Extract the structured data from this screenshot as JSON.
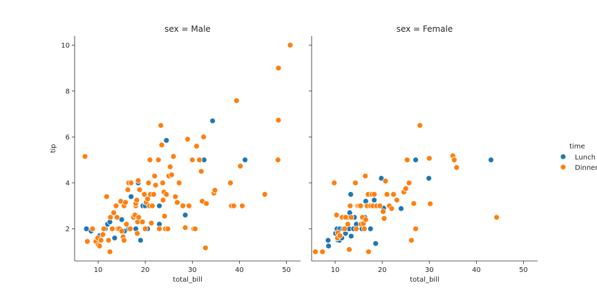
{
  "chart_data": {
    "type": "scatter",
    "panels": [
      {
        "title": "sex = Male",
        "xlabel": "total_bill",
        "ylabel": "tip",
        "xlim": [
          5,
          53
        ],
        "ylim": [
          0.6,
          10.4
        ],
        "xticks": [
          10,
          20,
          30,
          40,
          50
        ],
        "yticks": [
          2,
          4,
          6,
          8,
          10
        ],
        "series": [
          {
            "name": "Lunch",
            "points": [
              [
                7.5,
                2.0
              ],
              [
                8.5,
                1.9
              ],
              [
                9.6,
                1.5
              ],
              [
                10.1,
                1.3
              ],
              [
                10.3,
                1.7
              ],
              [
                11.5,
                2.0
              ],
              [
                12.0,
                2.2
              ],
              [
                12.5,
                2.3
              ],
              [
                13.1,
                2.0
              ],
              [
                13.5,
                1.6
              ],
              [
                14.5,
                2.0
              ],
              [
                15.0,
                2.4
              ],
              [
                15.6,
                1.9
              ],
              [
                16.5,
                2.0
              ],
              [
                17.0,
                3.4
              ],
              [
                18.0,
                2.0
              ],
              [
                18.5,
                4.0
              ],
              [
                19.0,
                1.5
              ],
              [
                19.5,
                3.0
              ],
              [
                20.0,
                3.0
              ],
              [
                20.5,
                2.0
              ],
              [
                23.0,
                3.0
              ],
              [
                23.0,
                2.2
              ],
              [
                24.5,
                5.85
              ],
              [
                28.5,
                2.6
              ],
              [
                32.5,
                5.0
              ],
              [
                34.3,
                6.7
              ],
              [
                41.2,
                5.0
              ]
            ]
          },
          {
            "name": "Dinner",
            "points": [
              [
                7.2,
                5.15
              ],
              [
                7.7,
                1.45
              ],
              [
                8.8,
                2.0
              ],
              [
                9.5,
                1.45
              ],
              [
                9.9,
                1.6
              ],
              [
                10.0,
                1.3
              ],
              [
                10.3,
                1.25
              ],
              [
                10.6,
                1.5
              ],
              [
                11.0,
                1.75
              ],
              [
                11.2,
                2.0
              ],
              [
                11.8,
                3.4
              ],
              [
                12.2,
                1.5
              ],
              [
                12.5,
                1.0
              ],
              [
                12.6,
                2.5
              ],
              [
                13.0,
                2.0
              ],
              [
                13.3,
                2.7
              ],
              [
                13.8,
                3.0
              ],
              [
                14.0,
                2.5
              ],
              [
                14.2,
                2.0
              ],
              [
                14.5,
                2.0
              ],
              [
                14.8,
                3.2
              ],
              [
                15.0,
                1.9
              ],
              [
                15.3,
                1.65
              ],
              [
                15.5,
                1.5
              ],
              [
                15.5,
                3.0
              ],
              [
                15.8,
                3.15
              ],
              [
                16.0,
                2.2
              ],
              [
                16.3,
                3.7
              ],
              [
                16.5,
                4.0
              ],
              [
                16.8,
                2.0
              ],
              [
                17.0,
                4.0
              ],
              [
                17.5,
                2.5
              ],
              [
                17.8,
                2.6
              ],
              [
                18.0,
                3.0
              ],
              [
                18.0,
                3.1
              ],
              [
                18.2,
                3.25
              ],
              [
                18.3,
                1.8
              ],
              [
                18.4,
                2.3
              ],
              [
                18.5,
                4.1
              ],
              [
                18.6,
                2.5
              ],
              [
                18.8,
                3.7
              ],
              [
                19.4,
                2.3
              ],
              [
                19.8,
                3.5
              ],
              [
                20.0,
                2.0
              ],
              [
                20.2,
                3.15
              ],
              [
                20.5,
                3.3
              ],
              [
                20.7,
                4.0
              ],
              [
                20.9,
                3.0
              ],
              [
                21.0,
                5.0
              ],
              [
                21.1,
                3.5
              ],
              [
                21.3,
                2.25
              ],
              [
                21.5,
                3.0
              ],
              [
                21.8,
                3.5
              ],
              [
                22.0,
                4.3
              ],
              [
                22.2,
                3.9
              ],
              [
                22.8,
                5.0
              ],
              [
                23.0,
                2.0
              ],
              [
                23.3,
                6.5
              ],
              [
                23.5,
                5.65
              ],
              [
                23.7,
                4.0
              ],
              [
                23.8,
                3.25
              ],
              [
                24.0,
                3.6
              ],
              [
                24.1,
                2.55
              ],
              [
                24.3,
                2.0
              ],
              [
                24.5,
                3.5
              ],
              [
                24.8,
                2.0
              ],
              [
                25.0,
                4.3
              ],
              [
                25.3,
                4.7
              ],
              [
                25.6,
                4.35
              ],
              [
                26.0,
                5.15
              ],
              [
                26.4,
                3.4
              ],
              [
                26.8,
                3.15
              ],
              [
                27.2,
                4.0
              ],
              [
                28.0,
                3.0
              ],
              [
                28.5,
                2.05
              ],
              [
                29.0,
                5.9
              ],
              [
                29.3,
                3.0
              ],
              [
                30.0,
                5.0
              ],
              [
                30.3,
                2.0
              ],
              [
                30.6,
                2.0
              ],
              [
                30.9,
                5.6
              ],
              [
                31.5,
                5.0
              ],
              [
                31.9,
                4.5
              ],
              [
                32.1,
                3.2
              ],
              [
                32.4,
                6.0
              ],
              [
                32.8,
                1.17
              ],
              [
                33.0,
                3.1
              ],
              [
                34.6,
                3.55
              ],
              [
                34.8,
                3.68
              ],
              [
                38.1,
                4.0
              ],
              [
                38.3,
                3.0
              ],
              [
                38.8,
                3.0
              ],
              [
                39.4,
                7.58
              ],
              [
                40.2,
                4.73
              ],
              [
                40.6,
                3.0
              ],
              [
                45.4,
                3.5
              ],
              [
                48.2,
                5.0
              ],
              [
                48.3,
                6.73
              ],
              [
                48.3,
                9.0
              ],
              [
                50.8,
                10.0
              ]
            ]
          }
        ]
      },
      {
        "title": "sex = Female",
        "xlabel": "total_bill",
        "ylabel": "",
        "xlim": [
          5,
          53
        ],
        "ylim": [
          0.6,
          10.4
        ],
        "xticks": [
          10,
          20,
          30,
          40,
          50
        ],
        "yticks": [
          2,
          4,
          6,
          8,
          10
        ],
        "series": [
          {
            "name": "Lunch",
            "points": [
              [
                8.5,
                1.5
              ],
              [
                8.6,
                1.25
              ],
              [
                10.1,
                1.8
              ],
              [
                10.3,
                2.0
              ],
              [
                10.4,
                2.0
              ],
              [
                10.6,
                1.5
              ],
              [
                10.9,
                1.5
              ],
              [
                11.0,
                2.0
              ],
              [
                11.4,
                1.6
              ],
              [
                11.7,
                2.0
              ],
              [
                12.0,
                2.0
              ],
              [
                12.2,
                1.8
              ],
              [
                12.4,
                2.0
              ],
              [
                12.6,
                2.5
              ],
              [
                12.7,
                2.0
              ],
              [
                13.0,
                2.0
              ],
              [
                13.1,
                2.7
              ],
              [
                13.3,
                3.5
              ],
              [
                13.4,
                1.68
              ],
              [
                13.9,
                2.0
              ],
              [
                14.1,
                2.5
              ],
              [
                14.5,
                2.2
              ],
              [
                15.0,
                3.0
              ],
              [
                15.4,
                3.0
              ],
              [
                15.7,
                2.0
              ],
              [
                16.0,
                2.5
              ],
              [
                16.3,
                2.5
              ],
              [
                16.5,
                3.2
              ],
              [
                17.0,
                3.0
              ],
              [
                17.5,
                2.0
              ],
              [
                18.3,
                3.25
              ],
              [
                18.6,
                1.36
              ],
              [
                19.8,
                4.2
              ],
              [
                20.3,
                2.9
              ],
              [
                24.0,
                2.88
              ],
              [
                27.1,
                5.0
              ],
              [
                29.9,
                4.2
              ],
              [
                43.1,
                5.0
              ]
            ]
          },
          {
            "name": "Dinner",
            "points": [
              [
                5.8,
                1.0
              ],
              [
                7.3,
                1.0
              ],
              [
                9.8,
                4.0
              ],
              [
                10.3,
                2.6
              ],
              [
                10.5,
                1.6
              ],
              [
                10.6,
                1.83
              ],
              [
                11.0,
                1.7
              ],
              [
                11.5,
                2.5
              ],
              [
                12.0,
                2.0
              ],
              [
                12.2,
                2.5
              ],
              [
                12.7,
                2.2
              ],
              [
                13.0,
                1.1
              ],
              [
                13.2,
                3.0
              ],
              [
                13.4,
                2.5
              ],
              [
                14.3,
                4.0
              ],
              [
                14.5,
                2.0
              ],
              [
                14.8,
                3.0
              ],
              [
                15.1,
                3.0
              ],
              [
                15.4,
                3.0
              ],
              [
                15.5,
                2.2
              ],
              [
                15.8,
                2.5
              ],
              [
                16.0,
                2.23
              ],
              [
                16.2,
                2.0
              ],
              [
                16.4,
                4.3
              ],
              [
                16.5,
                2.4
              ],
              [
                16.8,
                3.0
              ],
              [
                17.0,
                3.5
              ],
              [
                17.1,
                1.0
              ],
              [
                17.5,
                3.0
              ],
              [
                17.8,
                3.5
              ],
              [
                18.0,
                3.0
              ],
              [
                18.3,
                3.5
              ],
              [
                18.8,
                3.0
              ],
              [
                19.5,
                3.0
              ],
              [
                20.2,
                2.75
              ],
              [
                20.4,
                2.45
              ],
              [
                20.7,
                4.08
              ],
              [
                21.0,
                3.5
              ],
              [
                21.5,
                3.0
              ],
              [
                22.0,
                2.88
              ],
              [
                22.4,
                3.5
              ],
              [
                23.1,
                3.25
              ],
              [
                24.6,
                3.6
              ],
              [
                25.0,
                3.75
              ],
              [
                25.3,
                5.0
              ],
              [
                25.7,
                4.0
              ],
              [
                26.2,
                1.5
              ],
              [
                26.7,
                3.1
              ],
              [
                27.1,
                2.0
              ],
              [
                28.0,
                6.5
              ],
              [
                30.0,
                5.07
              ],
              [
                30.2,
                3.09
              ],
              [
                35.0,
                5.18
              ],
              [
                35.3,
                5.0
              ],
              [
                35.8,
                4.67
              ],
              [
                44.3,
                2.5
              ]
            ]
          }
        ]
      }
    ],
    "legend": {
      "title": "time",
      "placement": "right",
      "entries": [
        {
          "label": "Lunch",
          "color": "#1f77b4"
        },
        {
          "label": "Dinner",
          "color": "#ff7f0e"
        }
      ]
    },
    "colors": {
      "Lunch": "#1f77b4",
      "Dinner": "#ff7f0e"
    }
  }
}
